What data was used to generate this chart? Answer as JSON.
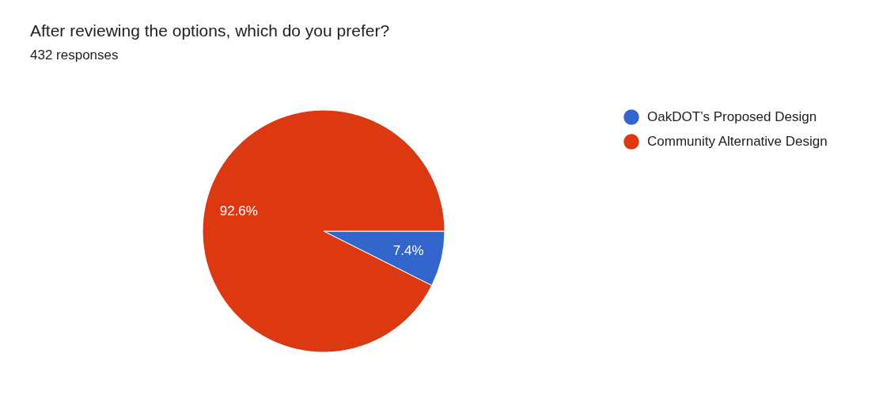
{
  "chart_data": {
    "type": "pie",
    "title": "After reviewing the options, which do you prefer?",
    "subtitle": "432 responses",
    "categories": [
      "OakDOT’s Proposed Design",
      "Community Alternative Design"
    ],
    "values": [
      7.4,
      92.6
    ],
    "colors": [
      "#3366cc",
      "#dc3912"
    ],
    "value_labels": [
      "7.4%",
      "92.6%"
    ],
    "legend": "top right"
  }
}
